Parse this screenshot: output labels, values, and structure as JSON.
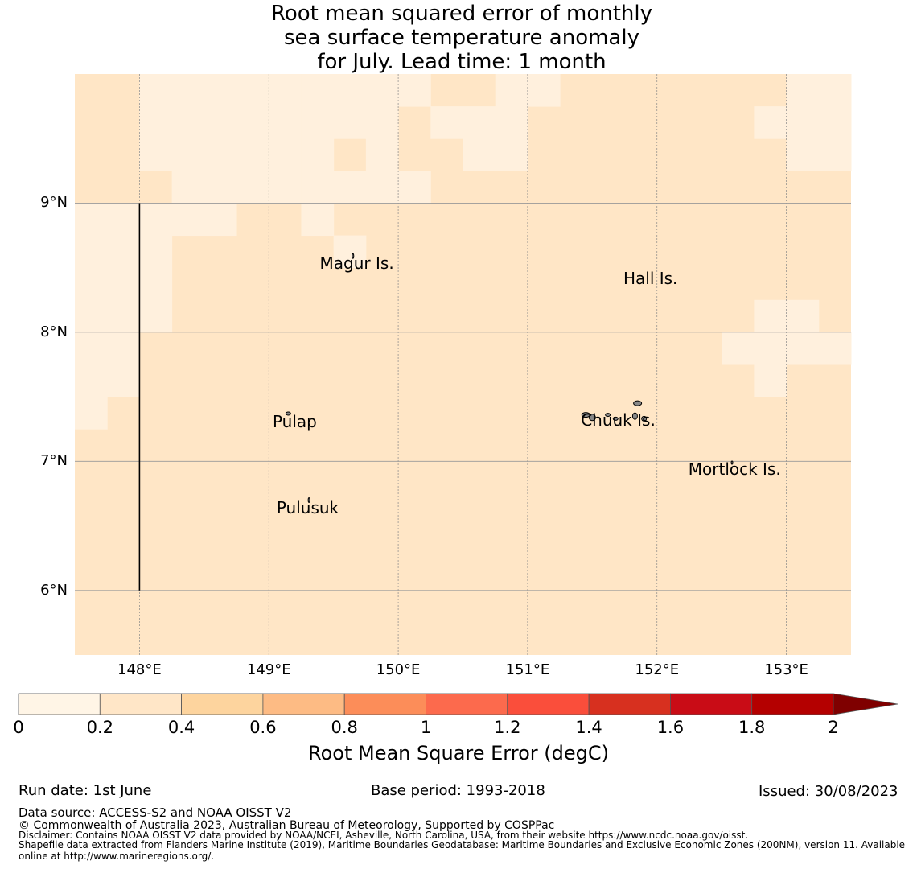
{
  "title": {
    "line1": "Root mean squared error of monthly",
    "line2": "sea surface temperature anomaly",
    "line3": "for July. Lead time: 1 month"
  },
  "map": {
    "lon_range": [
      147.5,
      153.5
    ],
    "lat_range": [
      5.5,
      10.0
    ],
    "grid_lons": [
      148,
      149,
      150,
      151,
      152,
      153
    ],
    "grid_lats": [
      6,
      7,
      8,
      9
    ],
    "x_ticks": [
      "148°E",
      "149°E",
      "150°E",
      "151°E",
      "152°E",
      "153°E"
    ],
    "y_ticks": [
      "9°N",
      "8°N",
      "7°N",
      "6°N"
    ],
    "cell_colors": {
      "c1": "#fff0dd",
      "c2": "#ffe6c6"
    },
    "cell_size_deg": 0.25,
    "light_cells": [
      [
        148.0,
        9.75
      ],
      [
        148.0,
        9.5
      ],
      [
        148.0,
        9.25
      ],
      [
        148.25,
        9.75
      ],
      [
        148.5,
        9.75
      ],
      [
        148.75,
        9.75
      ],
      [
        149.0,
        9.75
      ],
      [
        149.25,
        9.75
      ],
      [
        149.5,
        9.75
      ],
      [
        149.75,
        9.75
      ],
      [
        150.0,
        9.75
      ],
      [
        148.25,
        9.5
      ],
      [
        148.5,
        9.5
      ],
      [
        148.75,
        9.5
      ],
      [
        149.0,
        9.5
      ],
      [
        149.25,
        9.5
      ],
      [
        149.5,
        9.5
      ],
      [
        149.75,
        9.5
      ],
      [
        148.25,
        9.25
      ],
      [
        148.5,
        9.25
      ],
      [
        148.75,
        9.25
      ],
      [
        149.0,
        9.25
      ],
      [
        149.25,
        9.25
      ],
      [
        149.75,
        9.25
      ],
      [
        148.25,
        9.0
      ],
      [
        148.5,
        9.0
      ],
      [
        148.75,
        9.0
      ],
      [
        149.0,
        9.0
      ],
      [
        149.25,
        9.0
      ],
      [
        149.5,
        9.0
      ],
      [
        149.75,
        9.0
      ],
      [
        150.0,
        9.0
      ],
      [
        150.25,
        9.5
      ],
      [
        150.5,
        9.5
      ],
      [
        150.75,
        9.5
      ],
      [
        150.5,
        9.25
      ],
      [
        150.75,
        9.25
      ],
      [
        150.75,
        9.75
      ],
      [
        151.0,
        9.75
      ],
      [
        152.75,
        9.5
      ],
      [
        153.0,
        9.5
      ],
      [
        153.25,
        9.5
      ],
      [
        153.0,
        9.75
      ],
      [
        153.25,
        9.75
      ],
      [
        153.0,
        9.25
      ],
      [
        153.25,
        9.25
      ],
      [
        147.5,
        8.75
      ],
      [
        147.75,
        8.75
      ],
      [
        148.0,
        8.75
      ],
      [
        148.25,
        8.75
      ],
      [
        148.5,
        8.75
      ],
      [
        149.25,
        8.75
      ],
      [
        147.5,
        8.5
      ],
      [
        147.75,
        8.5
      ],
      [
        148.0,
        8.5
      ],
      [
        147.5,
        8.25
      ],
      [
        147.75,
        8.25
      ],
      [
        148.0,
        8.25
      ],
      [
        147.5,
        8.0
      ],
      [
        147.75,
        8.0
      ],
      [
        148.0,
        8.0
      ],
      [
        149.5,
        8.5
      ],
      [
        147.5,
        7.75
      ],
      [
        147.75,
        7.75
      ],
      [
        147.5,
        7.5
      ],
      [
        147.75,
        7.5
      ],
      [
        147.5,
        7.25
      ],
      [
        152.75,
        8.0
      ],
      [
        153.0,
        8.0
      ],
      [
        152.5,
        7.75
      ],
      [
        152.75,
        7.75
      ],
      [
        153.0,
        7.75
      ],
      [
        153.25,
        7.75
      ],
      [
        152.75,
        7.5
      ]
    ],
    "track_line": {
      "lon": 148.0,
      "lat_from": 6.0,
      "lat_to": 9.0
    },
    "places": [
      {
        "name": "Magur Is.",
        "lon": 149.68,
        "lat": 8.6
      },
      {
        "name": "Hall Is.",
        "lon": 151.95,
        "lat": 8.48
      },
      {
        "name": "Pulap",
        "lon": 149.2,
        "lat": 7.37
      },
      {
        "name": "Chuuk Is.",
        "lon": 151.7,
        "lat": 7.38
      },
      {
        "name": "Mortlock Is.",
        "lon": 152.6,
        "lat": 7.0
      },
      {
        "name": "Pulusuk",
        "lon": 149.3,
        "lat": 6.7
      }
    ]
  },
  "colorbar": {
    "ticks": [
      "0",
      "0.2",
      "0.4",
      "0.6",
      "0.8",
      "1",
      "1.2",
      "1.4",
      "1.6",
      "1.8",
      "2"
    ],
    "colors": [
      "#fff5e6",
      "#ffe6c7",
      "#fdd49e",
      "#fdbb84",
      "#fc8d59",
      "#fc6a4d",
      "#fa4e3b",
      "#d7301f",
      "#c90c16",
      "#b40000"
    ],
    "extend_color": "#7f0000",
    "label": "Root Mean Square Error (degC)"
  },
  "footer": {
    "run_date": "Run date: 1st June",
    "base_period": "Base period: 1993-2018",
    "issued": "Issued: 30/08/2023",
    "data_source": "Data source: ACCESS-S2 and NOAA OISST V2",
    "copyright": "© Commonwealth of Australia 2023, Australian Bureau of Meteorology, Supported by COSPPac",
    "disclaimer": "Disclaimer: Contains NOAA OISST V2 data provided by NOAA/NCEI, Asheville, North Carolina, USA, from their website https://www.ncdc.noaa.gov/oisst.",
    "shapefile1": "Shapefile data extracted from Flanders Marine Institute (2019), Maritime Boundaries Geodatabase: Maritime Boundaries and Exclusive Economic Zones (200NM), version 11. Available",
    "shapefile2": "online at http://www.marineregions.org/."
  }
}
